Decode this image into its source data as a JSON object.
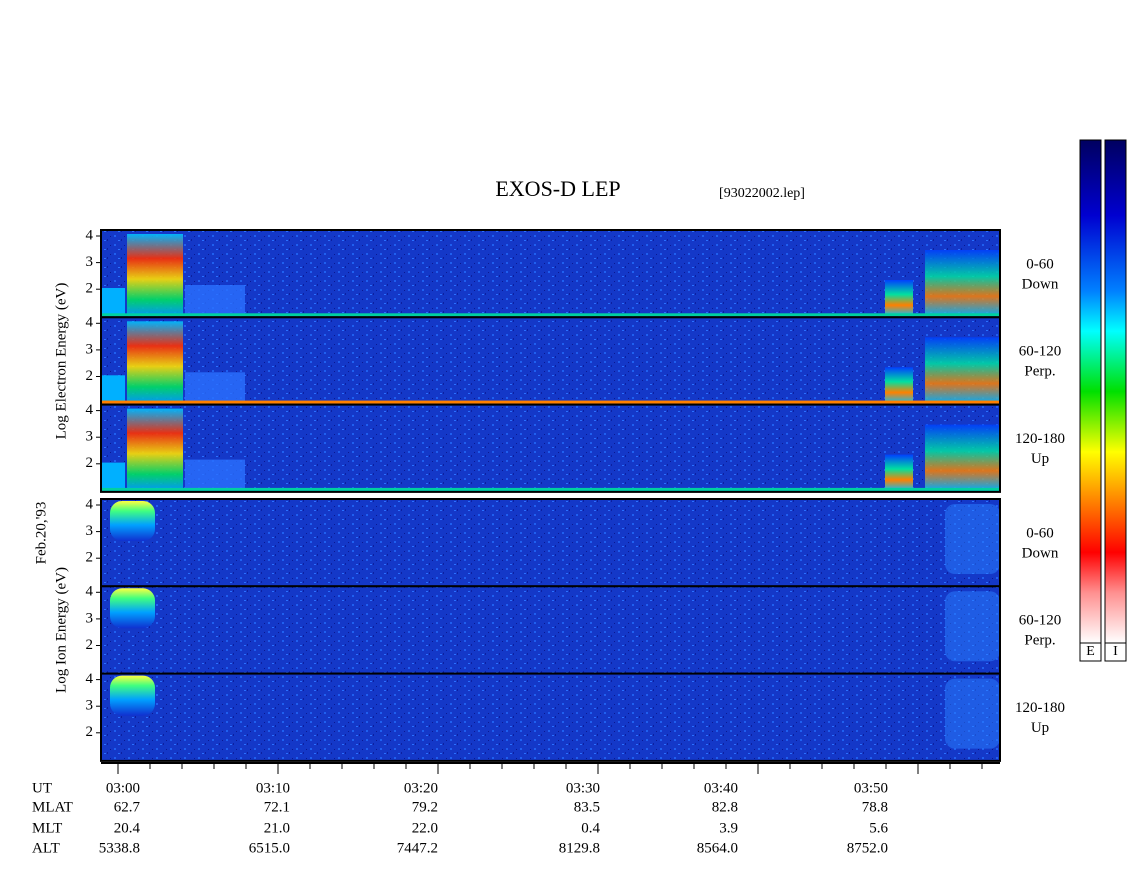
{
  "header": {
    "title": "EXOS-D LEP",
    "file": "[93022002.lep]"
  },
  "date": "Feb.20,'93",
  "groups": [
    {
      "axis_label": "Log  Electron  Energy  (eV)",
      "panels": [
        {
          "pitch": "0-60",
          "direction": "Down"
        },
        {
          "pitch": "60-120",
          "direction": "Perp."
        },
        {
          "pitch": "120-180",
          "direction": "Up"
        }
      ]
    },
    {
      "axis_label": "Log  Ion  Energy  (eV)",
      "panels": [
        {
          "pitch": "0-60",
          "direction": "Down"
        },
        {
          "pitch": "60-120",
          "direction": "Perp."
        },
        {
          "pitch": "120-180",
          "direction": "Up"
        }
      ]
    }
  ],
  "energy_ticks": [
    2,
    3,
    4
  ],
  "colorbars": [
    "E",
    "I"
  ],
  "ephemeris": {
    "rows": [
      {
        "label": "UT",
        "values": [
          "03:00",
          "03:10",
          "03:20",
          "03:30",
          "03:40",
          "03:50"
        ]
      },
      {
        "label": "MLAT",
        "values": [
          "62.7",
          "72.1",
          "79.2",
          "83.5",
          "82.8",
          "78.8"
        ]
      },
      {
        "label": "MLT",
        "values": [
          "20.4",
          "21.0",
          "22.0",
          "0.4",
          "3.9",
          "5.6"
        ]
      },
      {
        "label": "ALT",
        "values": [
          "5338.8",
          "6515.0",
          "7447.2",
          "8129.8",
          "8564.0",
          "8752.0"
        ]
      }
    ]
  }
}
